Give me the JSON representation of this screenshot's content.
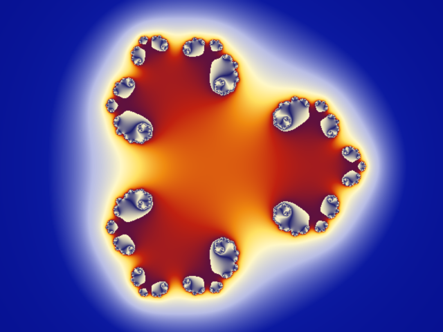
{
  "fractal": {
    "kind": "julia-set-cubic",
    "exponent": 3,
    "constant": {
      "re": -0.54,
      "im": 0
    },
    "rotation_deg": 0,
    "max_iterations": 60,
    "escape_radius": 4
  },
  "palette": {
    "exterior": "#050e8c",
    "halo": "#0b19a0",
    "interior_light": "#dcdcf0",
    "interior_mid": "#b8bde6",
    "interior_deep": "#a8afe2",
    "petal_pale": "#fff8c8",
    "petal_yellow": "#ffe060",
    "petal_orange": "#f08a10",
    "petal_red": "#c02010",
    "petal_maroon": "#5a1040",
    "petal_core": "#1a1a6a"
  }
}
